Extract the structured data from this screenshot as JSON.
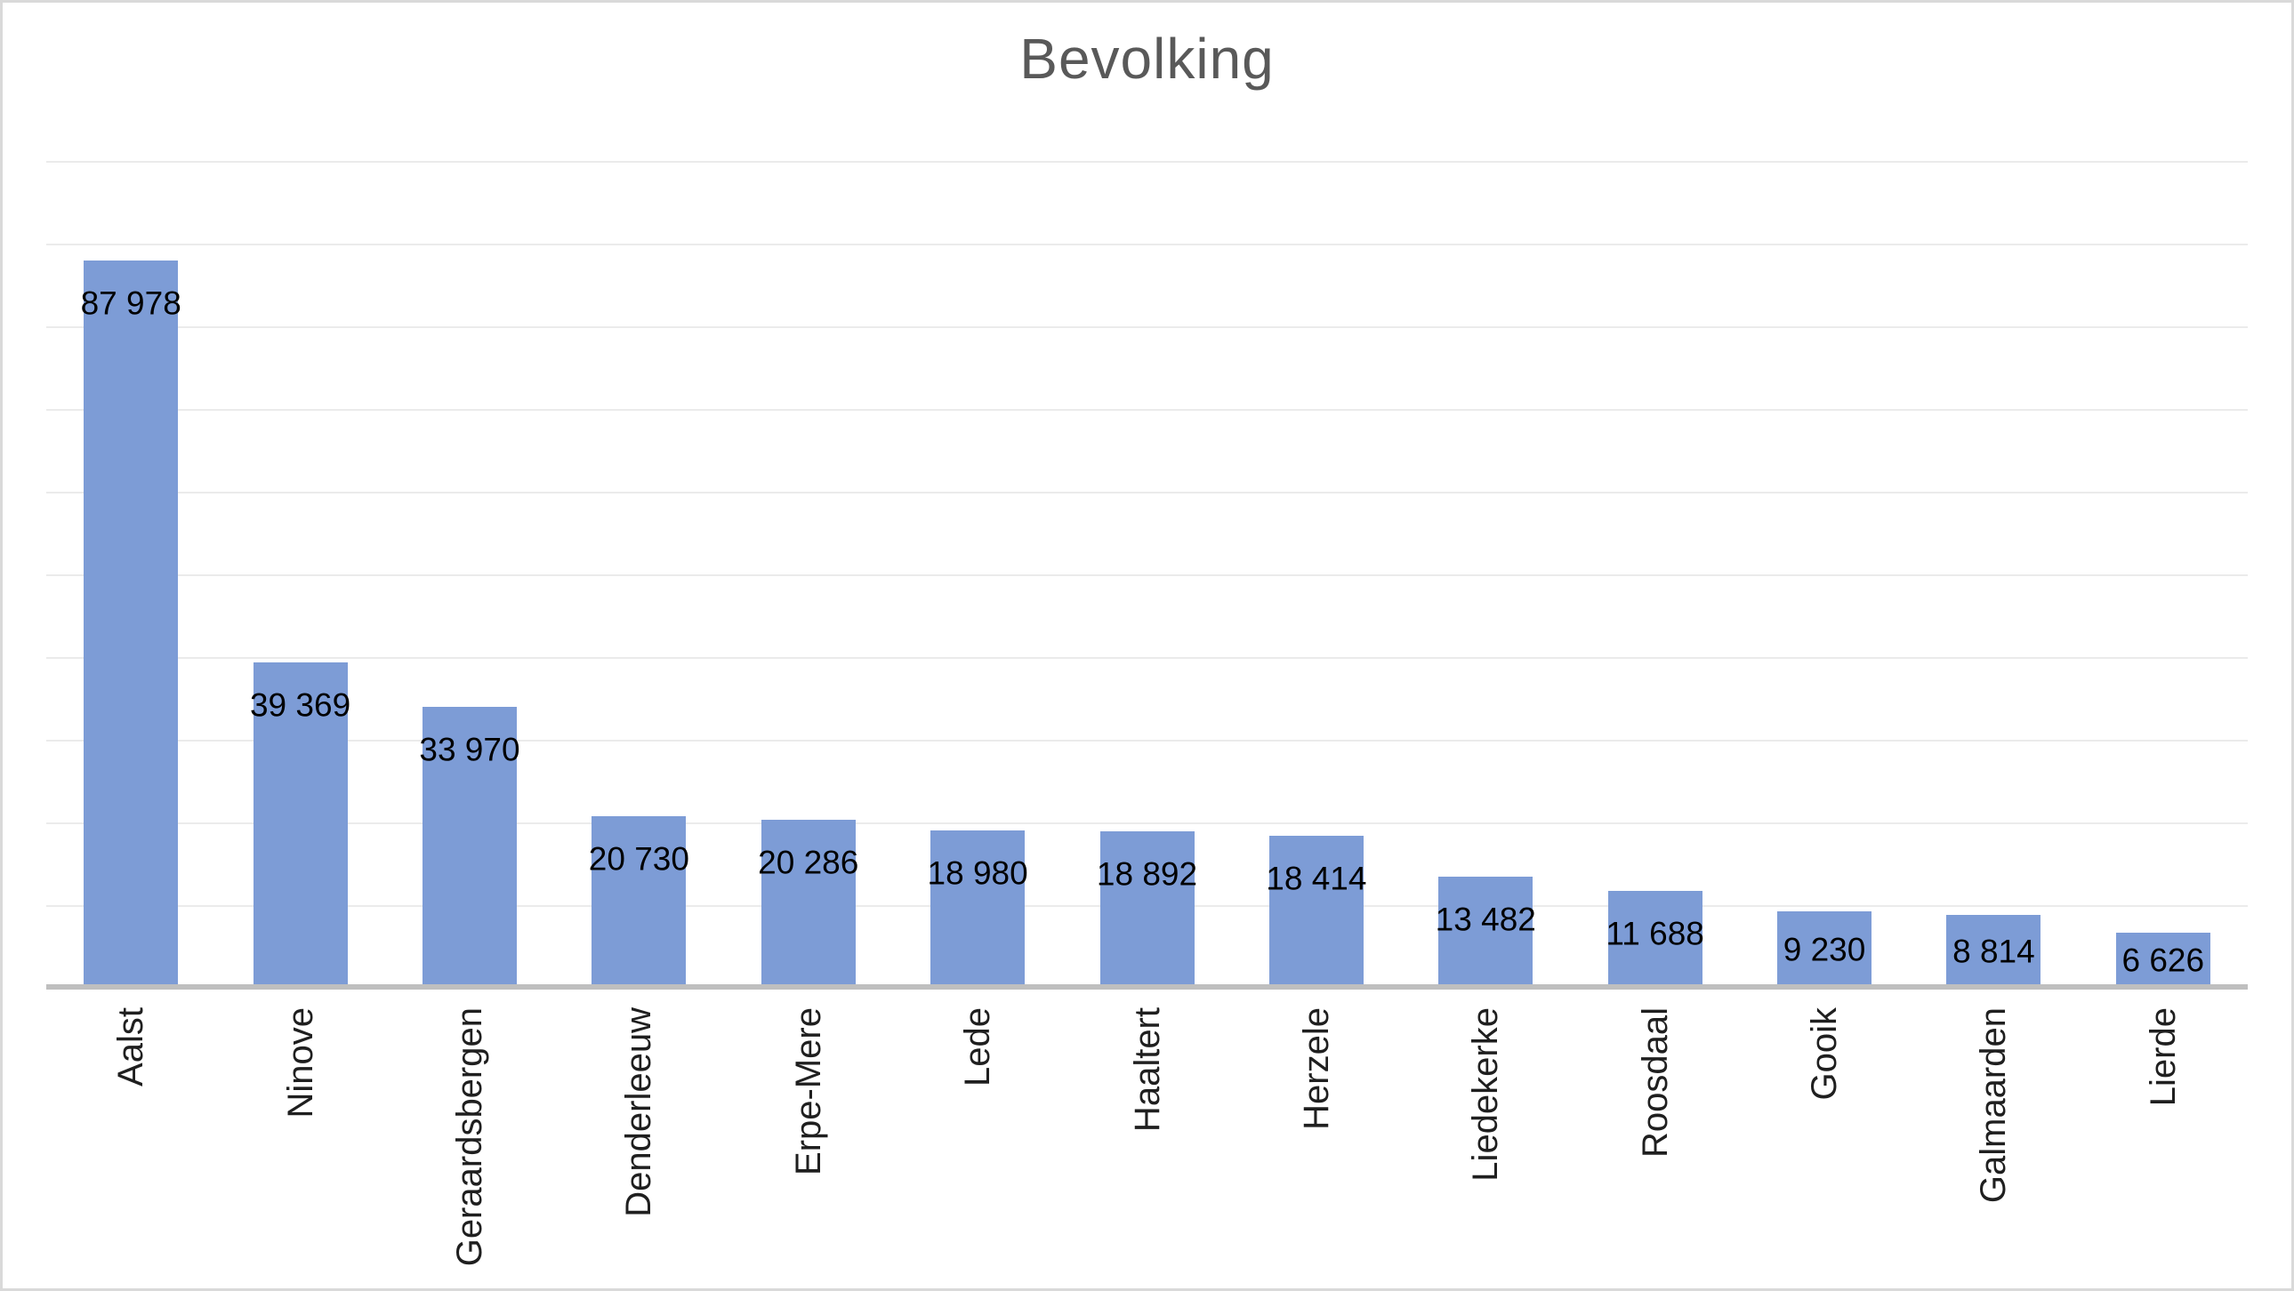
{
  "chart_data": {
    "type": "bar",
    "title": "Bevolking",
    "series_name": "Bevolking",
    "categories": [
      "Aalst",
      "Ninove",
      "Geraardsbergen",
      "Denderleeuw",
      "Erpe-Mere",
      "Lede",
      "Haaltert",
      "Herzele",
      "Liedekerke",
      "Roosdaal",
      "Gooik",
      "Galmaarden",
      "Lierde"
    ],
    "values": [
      87978,
      39369,
      33970,
      20730,
      20286,
      18980,
      18892,
      18414,
      13482,
      11688,
      9230,
      8814,
      6626
    ],
    "value_labels": [
      "87 978",
      "39 369",
      "33 970",
      "20 730",
      "20 286",
      "18 980",
      "18 892",
      "18 414",
      "13 482",
      "11 688",
      "9 230",
      "8 814",
      "6 626"
    ],
    "xlabel": "",
    "ylabel": "",
    "ylim": [
      0,
      100000
    ],
    "gridline_step": 10000,
    "grid": true,
    "legend": "none",
    "data_label_position": "inside-end",
    "category_label_rotation": "90deg-ccw",
    "colors": {
      "bar": "#7D9CD6",
      "title": "#595959",
      "axis_line": "#BFBFBF",
      "gridline": "#EBEBEB",
      "data_label": "#000000",
      "category_label": "#1F1F1F",
      "border": "#D9D9D9",
      "background": "#FFFFFF"
    }
  }
}
